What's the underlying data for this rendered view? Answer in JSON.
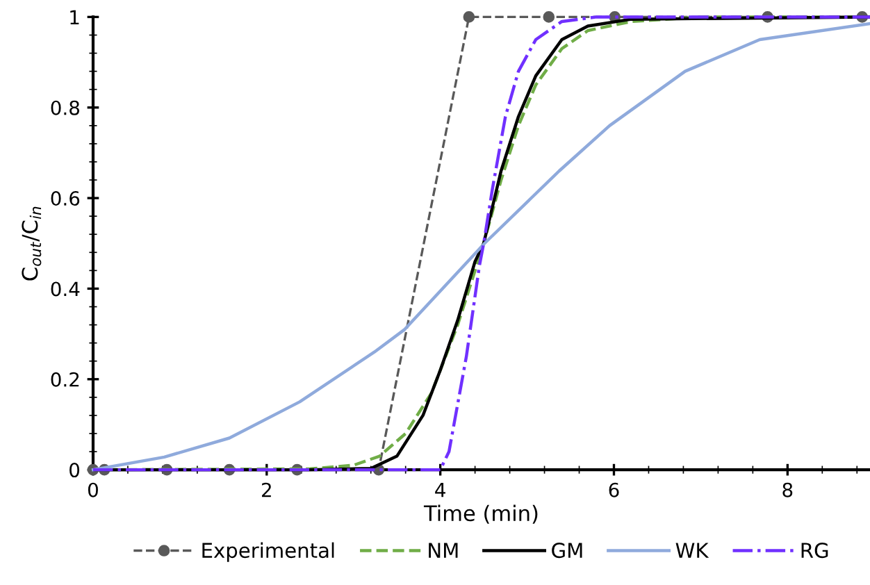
{
  "chart_data": {
    "type": "line",
    "xlabel": "Time (min)",
    "ylabel": "C$_{out}$/C$_{in}$",
    "xlim": [
      0,
      8.95
    ],
    "ylim": [
      0,
      1
    ],
    "xticks": [
      0,
      2,
      4,
      6,
      8
    ],
    "yticks": [
      0,
      0.2,
      0.4,
      0.6,
      0.8,
      1
    ],
    "grid": false,
    "legend": "bottom",
    "series": [
      {
        "name": "Experimental",
        "color": "#595959",
        "line_style": "dashed",
        "marker": "circle",
        "x": [
          0,
          0.13,
          0.85,
          1.57,
          2.35,
          3.29,
          4.33,
          5.25,
          6.01,
          7.77,
          8.86
        ],
        "values": [
          0,
          0,
          0,
          0,
          0,
          0,
          1,
          1,
          1,
          1,
          1
        ]
      },
      {
        "name": "NM",
        "color": "#70ad47",
        "line_style": "dashed",
        "x": [
          0,
          2.5,
          3.0,
          3.3,
          3.6,
          3.9,
          4.2,
          4.4,
          4.5,
          4.7,
          4.9,
          5.1,
          5.4,
          5.7,
          6.2,
          7,
          8.95
        ],
        "values": [
          0,
          0.002,
          0.01,
          0.03,
          0.08,
          0.17,
          0.32,
          0.44,
          0.5,
          0.64,
          0.76,
          0.85,
          0.93,
          0.97,
          0.99,
          1,
          1
        ]
      },
      {
        "name": "GM",
        "color": "#000000",
        "line_style": "solid",
        "x": [
          0,
          2.5,
          3.2,
          3.5,
          3.8,
          4.0,
          4.2,
          4.4,
          4.5,
          4.7,
          4.9,
          5.1,
          5.4,
          5.7,
          6.2,
          8.95
        ],
        "values": [
          0,
          0,
          0.003,
          0.03,
          0.12,
          0.22,
          0.33,
          0.46,
          0.5,
          0.66,
          0.78,
          0.87,
          0.95,
          0.98,
          0.995,
          1
        ]
      },
      {
        "name": "WK",
        "color": "#8faadc",
        "line_style": "solid",
        "x": [
          0,
          0.82,
          1.57,
          2.38,
          3.24,
          3.59,
          4.51,
          5.37,
          5.95,
          6.82,
          7.68,
          8.94
        ],
        "values": [
          0,
          0.028,
          0.07,
          0.15,
          0.26,
          0.31,
          0.5,
          0.66,
          0.76,
          0.88,
          0.95,
          0.985
        ]
      },
      {
        "name": "RG",
        "color": "#7030ff",
        "line_style": "dashdot",
        "x": [
          0,
          4.0,
          4.1,
          4.3,
          4.45,
          4.5,
          4.6,
          4.75,
          4.9,
          5.1,
          5.4,
          5.8,
          8.95
        ],
        "values": [
          0,
          0,
          0.04,
          0.25,
          0.45,
          0.5,
          0.62,
          0.78,
          0.88,
          0.95,
          0.99,
          1,
          1
        ]
      }
    ]
  }
}
